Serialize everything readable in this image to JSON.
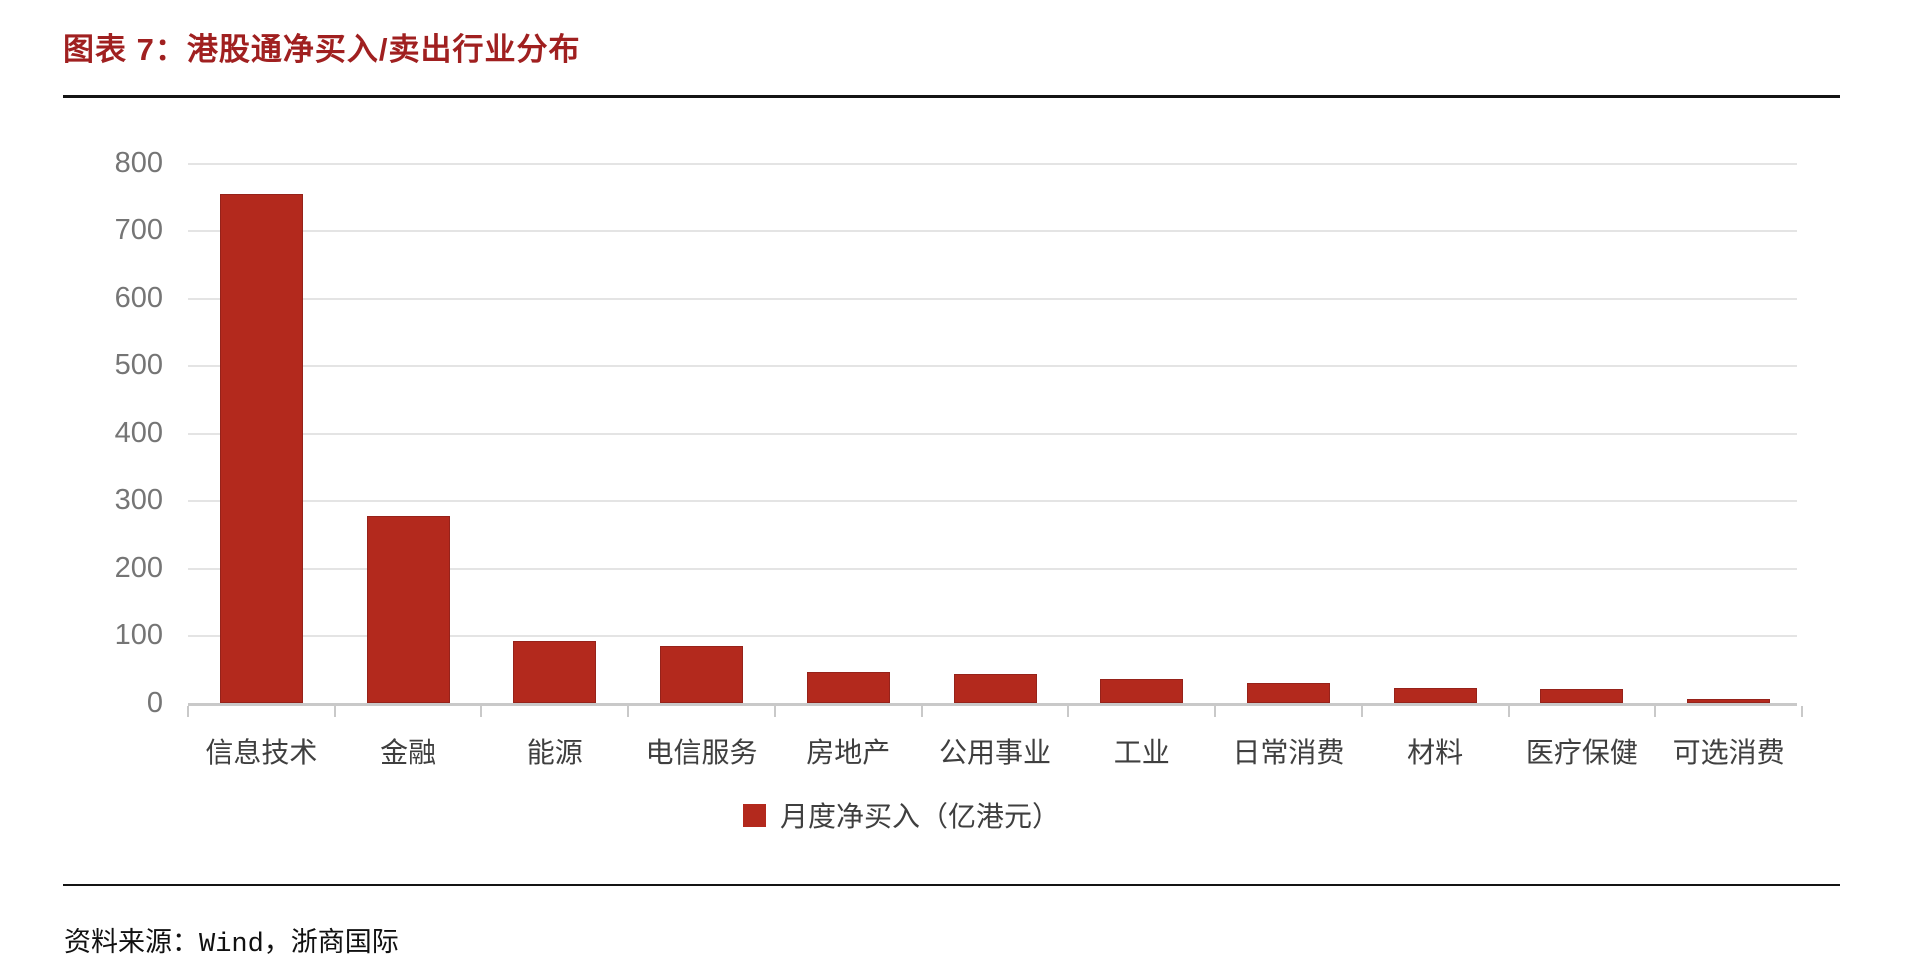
{
  "figure": {
    "title": "图表 7：港股通净买入/卖出行业分布",
    "source": "资料来源：Wind，浙商国际"
  },
  "chart_data": {
    "type": "bar",
    "title": "港股通净买入/卖出行业分布",
    "categories": [
      "信息技术",
      "金融",
      "能源",
      "电信服务",
      "房地产",
      "公用事业",
      "工业",
      "日常消费",
      "材料",
      "医疗保健",
      "可选消费"
    ],
    "values": [
      755,
      278,
      93,
      86,
      47,
      44,
      36,
      30,
      23,
      21,
      7
    ],
    "series_name": "月度净买入（亿港元）",
    "legend": "月度净买入（亿港元）",
    "legend_position": "bottom",
    "xlabel": "",
    "ylabel": "",
    "ylim": [
      0,
      800
    ],
    "y_ticks": [
      "0",
      "100",
      "200",
      "300",
      "400",
      "500",
      "600",
      "700",
      "800"
    ],
    "grid": true
  },
  "colors": {
    "bar_red": "#b3291d",
    "bar_edge": "#96221a",
    "title_red": "#a02020",
    "rule_black": "#141414",
    "gridline_gray": "#e4e4e4",
    "axis_gray": "#c9c9c9",
    "y_label_gray": "#757575",
    "x_label_dark": "#3f3f3f",
    "legend_text": "#3f3f3f",
    "source_text": "#111111"
  }
}
